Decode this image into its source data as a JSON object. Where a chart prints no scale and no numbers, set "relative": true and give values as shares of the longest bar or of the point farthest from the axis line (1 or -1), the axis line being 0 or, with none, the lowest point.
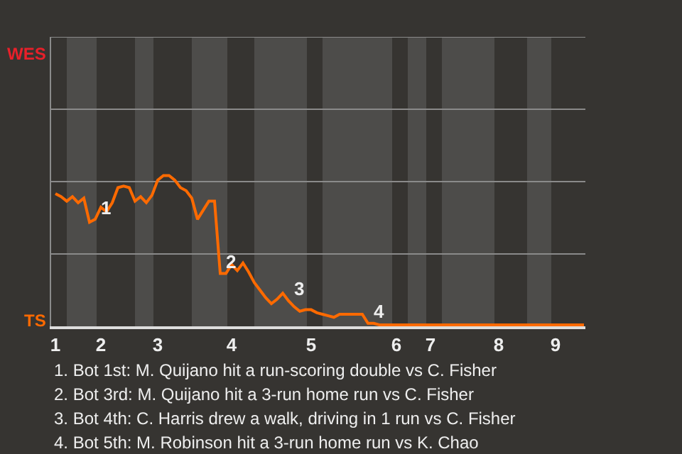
{
  "chart_data": {
    "type": "line",
    "relative": true,
    "categories": [
      "1",
      null,
      null,
      null,
      null,
      null,
      null,
      null,
      "2",
      null,
      null,
      null,
      null,
      null,
      null,
      null,
      null,
      null,
      "3",
      null,
      null,
      null,
      null,
      null,
      null,
      null,
      null,
      null,
      null,
      null,
      null,
      "4",
      null,
      null,
      null,
      null,
      null,
      null,
      null,
      null,
      null,
      null,
      null,
      null,
      null,
      "5",
      null,
      null,
      null,
      null,
      null,
      null,
      null,
      null,
      null,
      null,
      null,
      null,
      null,
      null,
      "6",
      null,
      null,
      null,
      null,
      null,
      "7",
      null,
      null,
      null,
      null,
      null,
      null,
      null,
      null,
      null,
      null,
      null,
      "8",
      null,
      null,
      null,
      null,
      null,
      null,
      null,
      null,
      null,
      "9",
      null,
      null,
      null,
      null,
      null
    ],
    "series": [
      {
        "color": "#ff6a00",
        "values": [
          0.88,
          0.86,
          0.83,
          0.86,
          0.82,
          0.85,
          0.69,
          0.71,
          0.79,
          0.76,
          0.82,
          0.92,
          0.93,
          0.92,
          0.83,
          0.86,
          0.82,
          0.87,
          0.97,
          1,
          1,
          0.97,
          0.92,
          0.9,
          0.85,
          0.71,
          0.77,
          0.83,
          0.83,
          0.35,
          0.35,
          0.41,
          0.37,
          0.42,
          0.36,
          0.29,
          0.24,
          0.19,
          0.15,
          0.18,
          0.22,
          0.17,
          0.13,
          0.1,
          0.11,
          0.11,
          0.09,
          0.08,
          0.07,
          0.06,
          0.08,
          0.08,
          0.08,
          0.08,
          0.08,
          0.02,
          0.02,
          0.01,
          0.01,
          0.01,
          0.01,
          0.01,
          0.01,
          0.01,
          0.01,
          0.01,
          0.01,
          0.01,
          0.01,
          0.01,
          0.01,
          0.01,
          0.01,
          0.01,
          0.01,
          0.01,
          0.01,
          0.01,
          0.01,
          0.01,
          0.01,
          0.01,
          0.01,
          0.01,
          0.01,
          0.01,
          0.01,
          0.01,
          0.01,
          0.01,
          0.01,
          0.01,
          0.01,
          0.01
        ]
      }
    ],
    "ref_lines": [
      {
        "axis": "y",
        "value": 0.48,
        "color": "#8a8a8a"
      },
      {
        "axis": "y",
        "value": 0.96,
        "color": "#8a8a8a"
      },
      {
        "axis": "y",
        "value": 1.44,
        "color": "#8a8a8a"
      },
      {
        "axis": "y",
        "value": 1.92,
        "color": "#8a8a8a"
      }
    ],
    "marker": "none",
    "line_style": "solid",
    "annotations": [
      {
        "text": "1",
        "y": 0.71
      },
      {
        "text": "2",
        "y": 0.35
      },
      {
        "text": "3",
        "y": 0.17
      },
      {
        "text": "4",
        "y": 0.02
      },
      "WES",
      "TS",
      "1. Bot 1st: M. Quijano hit a run-scoring double vs C. Fisher",
      "2. Bot 3rd: M. Quijano hit a 3-run home run vs C. Fisher",
      "3. Bot 4th: C. Harris drew a walk, driving in 1 run vs C. Fisher",
      "4. Bot 5th: M. Robinson hit a 3-run home run vs K. Chao"
    ]
  }
}
